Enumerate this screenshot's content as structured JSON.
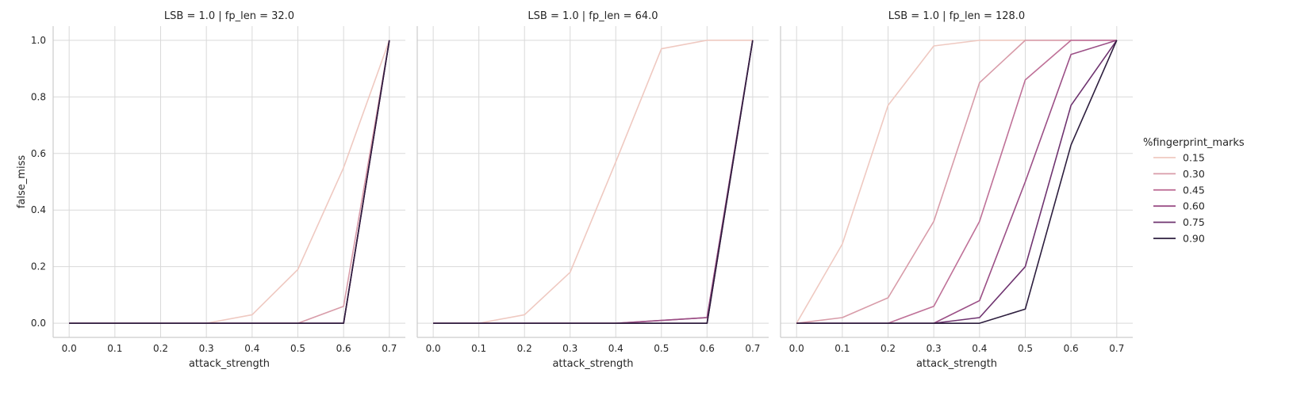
{
  "chart_data": [
    {
      "type": "line",
      "title": "LSB = 1.0 | fp_len = 32.0",
      "xlabel": "attack_strength",
      "ylabel": "false_miss",
      "x": [
        0.0,
        0.1,
        0.2,
        0.3,
        0.4,
        0.5,
        0.6,
        0.7
      ],
      "xlim": [
        -0.035,
        0.735
      ],
      "ylim": [
        -0.05,
        1.05
      ],
      "xticks": [
        "0.0",
        "0.1",
        "0.2",
        "0.3",
        "0.4",
        "0.5",
        "0.6",
        "0.7"
      ],
      "yticks": [
        "0.0",
        "0.2",
        "0.4",
        "0.6",
        "0.8",
        "1.0"
      ],
      "grid": true,
      "series": [
        {
          "name": "0.15",
          "color": "#efc9c1",
          "values": [
            0,
            0,
            0,
            0,
            0.03,
            0.19,
            0.55,
            1.0
          ]
        },
        {
          "name": "0.30",
          "color": "#d89ca9",
          "values": [
            0,
            0,
            0,
            0,
            0,
            0,
            0.06,
            1.0
          ]
        },
        {
          "name": "0.45",
          "color": "#bf7198",
          "values": [
            0,
            0,
            0,
            0,
            0,
            0,
            0,
            1.0
          ]
        },
        {
          "name": "0.60",
          "color": "#9b4f86",
          "values": [
            0,
            0,
            0,
            0,
            0,
            0,
            0,
            1.0
          ]
        },
        {
          "name": "0.75",
          "color": "#6e336f",
          "values": [
            0,
            0,
            0,
            0,
            0,
            0,
            0,
            1.0
          ]
        },
        {
          "name": "0.90",
          "color": "#2d1e3e",
          "values": [
            0,
            0,
            0,
            0,
            0,
            0,
            0,
            1.0
          ]
        }
      ]
    },
    {
      "type": "line",
      "title": "LSB = 1.0 | fp_len = 64.0",
      "xlabel": "attack_strength",
      "ylabel": "",
      "x": [
        0.0,
        0.1,
        0.2,
        0.3,
        0.4,
        0.5,
        0.6,
        0.7
      ],
      "xlim": [
        -0.035,
        0.735
      ],
      "ylim": [
        -0.05,
        1.05
      ],
      "xticks": [
        "0.0",
        "0.1",
        "0.2",
        "0.3",
        "0.4",
        "0.5",
        "0.6",
        "0.7"
      ],
      "yticks": [],
      "grid": true,
      "series": [
        {
          "name": "0.15",
          "color": "#efc9c1",
          "values": [
            0,
            0,
            0.03,
            0.18,
            0.57,
            0.97,
            1.0,
            1.0
          ]
        },
        {
          "name": "0.30",
          "color": "#d89ca9",
          "values": [
            0,
            0,
            0,
            0,
            0,
            0,
            0,
            1.0
          ]
        },
        {
          "name": "0.45",
          "color": "#bf7198",
          "values": [
            0,
            0,
            0,
            0,
            0,
            0.01,
            0.02,
            1.0
          ]
        },
        {
          "name": "0.60",
          "color": "#9b4f86",
          "values": [
            0,
            0,
            0,
            0,
            0,
            0.01,
            0.02,
            1.0
          ]
        },
        {
          "name": "0.75",
          "color": "#6e336f",
          "values": [
            0,
            0,
            0,
            0,
            0,
            0,
            0,
            1.0
          ]
        },
        {
          "name": "0.90",
          "color": "#2d1e3e",
          "values": [
            0,
            0,
            0,
            0,
            0,
            0,
            0,
            1.0
          ]
        }
      ]
    },
    {
      "type": "line",
      "title": "LSB = 1.0 | fp_len = 128.0",
      "xlabel": "attack_strength",
      "ylabel": "",
      "x": [
        0.0,
        0.1,
        0.2,
        0.3,
        0.4,
        0.5,
        0.6,
        0.7
      ],
      "xlim": [
        -0.035,
        0.735
      ],
      "ylim": [
        -0.05,
        1.05
      ],
      "xticks": [
        "0.0",
        "0.1",
        "0.2",
        "0.3",
        "0.4",
        "0.5",
        "0.6",
        "0.7"
      ],
      "yticks": [],
      "grid": true,
      "series": [
        {
          "name": "0.15",
          "color": "#efc9c1",
          "values": [
            0,
            0.28,
            0.77,
            0.98,
            1.0,
            1.0,
            1.0,
            1.0
          ]
        },
        {
          "name": "0.30",
          "color": "#d89ca9",
          "values": [
            0,
            0.02,
            0.09,
            0.36,
            0.85,
            1.0,
            1.0,
            1.0
          ]
        },
        {
          "name": "0.45",
          "color": "#bf7198",
          "values": [
            0,
            0,
            0,
            0.06,
            0.36,
            0.86,
            1.0,
            1.0
          ]
        },
        {
          "name": "0.60",
          "color": "#9b4f86",
          "values": [
            0,
            0,
            0,
            0,
            0.08,
            0.5,
            0.95,
            1.0
          ]
        },
        {
          "name": "0.75",
          "color": "#6e336f",
          "values": [
            0,
            0,
            0,
            0,
            0.02,
            0.2,
            0.77,
            1.0
          ]
        },
        {
          "name": "0.90",
          "color": "#2d1e3e",
          "values": [
            0,
            0,
            0,
            0,
            0,
            0.05,
            0.63,
            1.0
          ]
        }
      ]
    }
  ],
  "legend": {
    "title": "%fingerprint_marks",
    "placement": "right",
    "entries": [
      {
        "label": "0.15",
        "color": "#efc9c1"
      },
      {
        "label": "0.30",
        "color": "#d89ca9"
      },
      {
        "label": "0.45",
        "color": "#bf7198"
      },
      {
        "label": "0.60",
        "color": "#9b4f86"
      },
      {
        "label": "0.75",
        "color": "#6e336f"
      },
      {
        "label": "0.90",
        "color": "#2d1e3e"
      }
    ]
  }
}
